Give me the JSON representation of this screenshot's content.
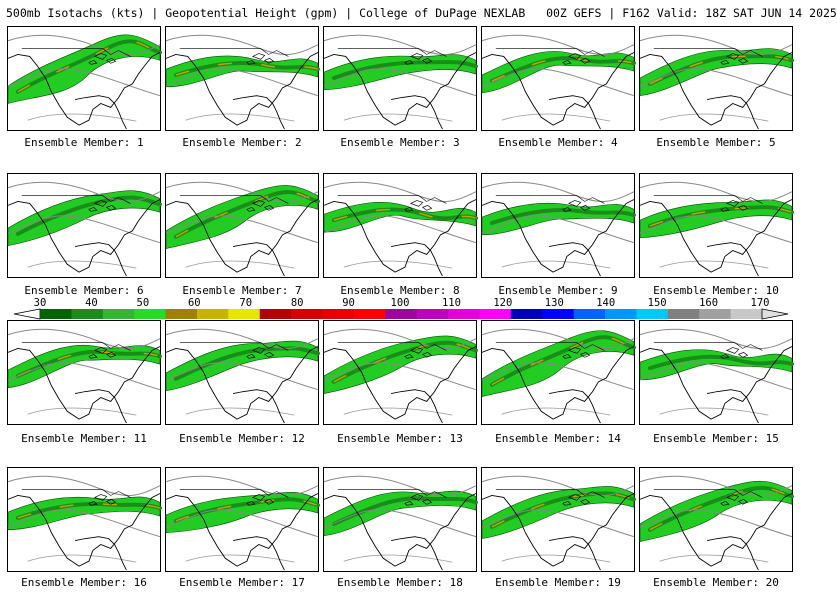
{
  "header": {
    "left": "500mb Isotachs (kts) | Geopotential Height (gpm) | College of DuPage NEXLAB",
    "right": "00Z GEFS | F162 Valid: 18Z SAT JUN 14 2025"
  },
  "colorbar": {
    "ticks": [
      "30",
      "40",
      "50",
      "60",
      "70",
      "80",
      "90",
      "100",
      "110",
      "120",
      "130",
      "140",
      "150",
      "160",
      "170"
    ],
    "colors": [
      "#006400",
      "#1a8c1a",
      "#33b733",
      "#22dd22",
      "#a08000",
      "#c8b400",
      "#e6e600",
      "#b40000",
      "#d20000",
      "#e60000",
      "#ff0000",
      "#a000a0",
      "#c000c0",
      "#e000e0",
      "#ff00ff",
      "#0000b4",
      "#0000ff",
      "#0064ff",
      "#0096ff",
      "#00c8ff",
      "#808080",
      "#a0a0a0",
      "#c8c8c8"
    ]
  },
  "panels": [
    {
      "label": "Ensemble Member: 1"
    },
    {
      "label": "Ensemble Member: 2"
    },
    {
      "label": "Ensemble Member: 3"
    },
    {
      "label": "Ensemble Member: 4"
    },
    {
      "label": "Ensemble Member: 5"
    },
    {
      "label": "Ensemble Member: 6"
    },
    {
      "label": "Ensemble Member: 7"
    },
    {
      "label": "Ensemble Member: 8"
    },
    {
      "label": "Ensemble Member: 9"
    },
    {
      "label": "Ensemble Member: 10"
    },
    {
      "label": "Ensemble Member: 11"
    },
    {
      "label": "Ensemble Member: 12"
    },
    {
      "label": "Ensemble Member: 13"
    },
    {
      "label": "Ensemble Member: 14"
    },
    {
      "label": "Ensemble Member: 15"
    },
    {
      "label": "Ensemble Member: 16"
    },
    {
      "label": "Ensemble Member: 17"
    },
    {
      "label": "Ensemble Member: 18"
    },
    {
      "label": "Ensemble Member: 19"
    },
    {
      "label": "Ensemble Member: 20"
    }
  ]
}
